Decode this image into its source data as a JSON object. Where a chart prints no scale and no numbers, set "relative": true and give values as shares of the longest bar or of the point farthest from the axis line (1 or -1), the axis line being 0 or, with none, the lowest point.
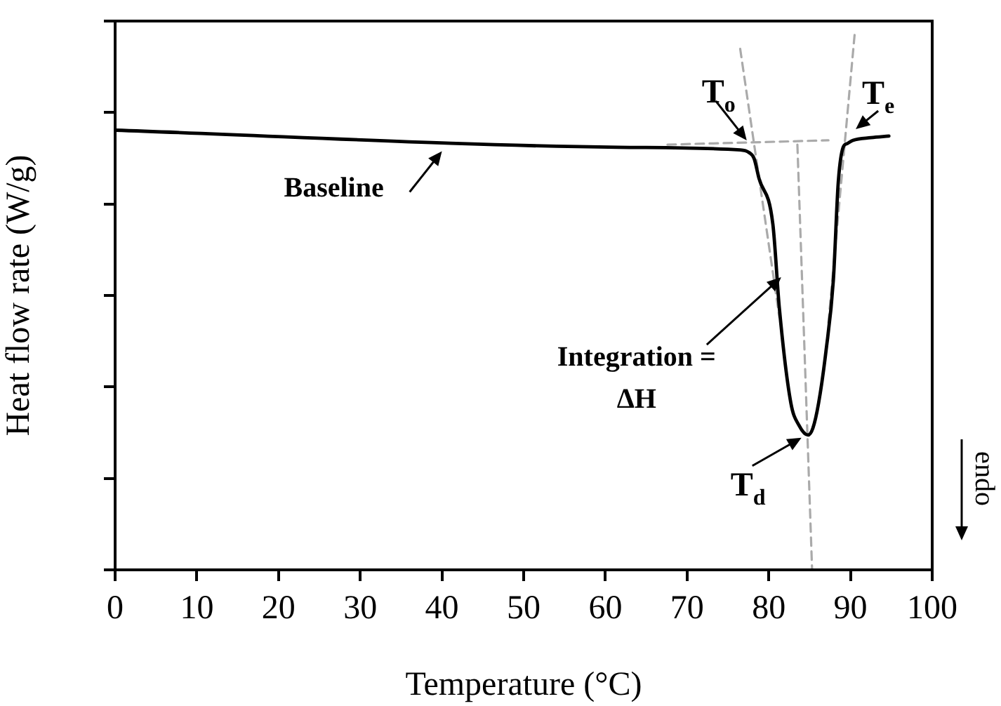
{
  "chart_data": {
    "type": "line",
    "xlabel": "Temperature (°C)",
    "ylabel": "Heat flow rate (W/g)",
    "relative": true,
    "xlim": [
      0,
      100
    ],
    "xticks": [
      0,
      10,
      20,
      30,
      40,
      50,
      60,
      70,
      80,
      90,
      100
    ],
    "grid": false,
    "legend": false,
    "marker": "none",
    "series": [
      {
        "color": "#000000",
        "line_style": "solid",
        "x": [
          0,
          61.6,
          76.5,
          77.6,
          78.2,
          78.8,
          80.5,
          81.3,
          82.7,
          83.7,
          84.8,
          85.4,
          86.1,
          87.0,
          87.9,
          88.5,
          89.1,
          89.6,
          90.3,
          92.5,
          94.7
        ],
        "values": [
          0.822,
          0.79,
          0.785,
          0.78,
          0.769,
          0.732,
          0.646,
          0.488,
          0.312,
          0.27,
          0.252,
          0.265,
          0.312,
          0.409,
          0.541,
          0.724,
          0.79,
          0.797,
          0.803,
          0.808,
          0.811
        ]
      },
      {
        "color": "#aaaaaa",
        "line_style": "dashed",
        "x": [
          67.6,
          87.3
        ],
        "values": [
          0.795,
          0.803
        ]
      },
      {
        "color": "#aaaaaa",
        "line_style": "dashed",
        "x": [
          76.5,
          81.3
        ],
        "values": [
          0.974,
          0.472
        ]
      },
      {
        "color": "#aaaaaa",
        "line_style": "dashed",
        "x": [
          90.5,
          87.3
        ],
        "values": [
          1.0,
          0.462
        ]
      },
      {
        "color": "#aaaaaa",
        "line_style": "dashed",
        "x": [
          83.5,
          85.3
        ],
        "values": [
          0.795,
          0
        ]
      }
    ],
    "annotations": [
      {
        "text": "Baseline",
        "x": 40,
        "y": 0.801
      },
      {
        "text": "Integration =\nΔH",
        "x": 81.0,
        "y": 0.547
      },
      {
        "text": "T$_{o}$",
        "x": 77.3,
        "y": 0.803
      },
      {
        "text": "T$_{e}$",
        "x": 90.3,
        "y": 0.803
      },
      {
        "text": "T$_{d}$",
        "x": 84.0,
        "y": 0.247
      },
      "endo"
    ]
  }
}
